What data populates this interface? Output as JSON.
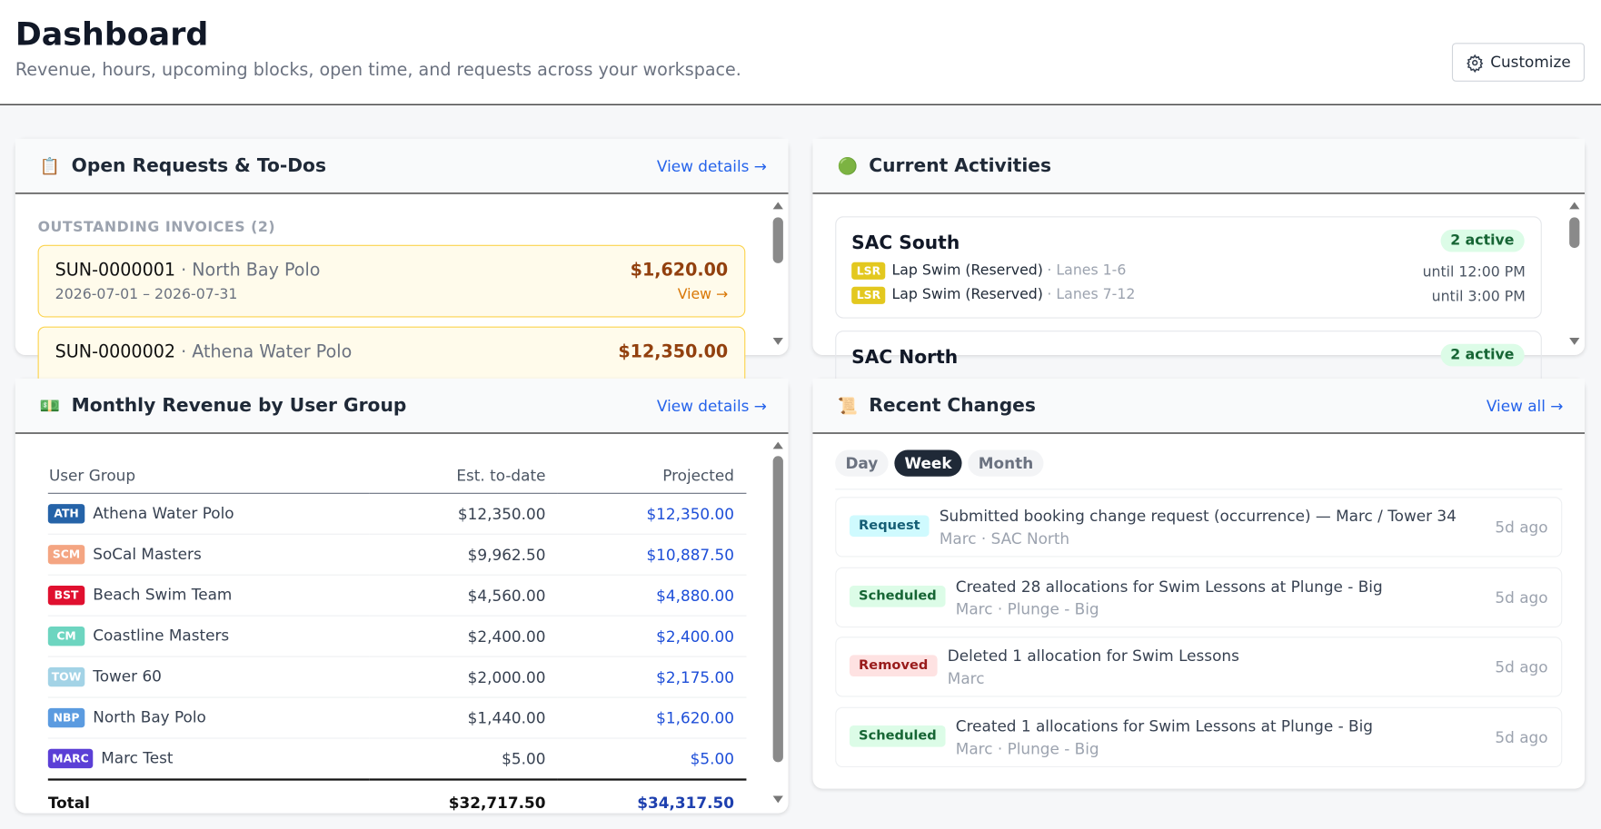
{
  "header": {
    "title": "Dashboard",
    "subtitle": "Revenue, hours, upcoming blocks, open time, and requests across your workspace.",
    "button": "Customize"
  },
  "requests": {
    "icon": "📋",
    "title": "Open Requests & To-Dos",
    "link": "View details →",
    "section": "OUTSTANDING INVOICES (2)",
    "invoices": [
      {
        "id": "SUN-0000001",
        "client": "· North Bay Polo",
        "dates": "2026-07-01 – 2026-07-31",
        "amount": "$1,620.00",
        "action": "View →"
      },
      {
        "id": "SUN-0000002",
        "client": "· Athena Water Polo",
        "amount": "$12,350.00"
      }
    ]
  },
  "activities": {
    "icon": "🟢",
    "title": "Current Activities",
    "locations": [
      {
        "name": "SAC South",
        "badge": "2 active",
        "items": [
          {
            "tag": "LSR",
            "name": "Lap Swim (Reserved)",
            "lanes": "· Lanes 1-6",
            "until": "until 12:00 PM"
          },
          {
            "tag": "LSR",
            "name": "Lap Swim (Reserved)",
            "lanes": "· Lanes 7-12",
            "until": "until 3:00 PM"
          }
        ]
      },
      {
        "name": "SAC North",
        "badge": "2 active",
        "items": []
      }
    ]
  },
  "revenue": {
    "icon": "💵",
    "title": "Monthly Revenue by User Group",
    "link": "View details →",
    "columns": [
      "User Group",
      "Est. to-date",
      "Projected"
    ],
    "rows": [
      {
        "abbr": "ATH",
        "color": "#2563a8",
        "name": "Athena Water Polo",
        "est": "$12,350.00",
        "proj": "$12,350.00"
      },
      {
        "abbr": "SCM",
        "color": "#f4a582",
        "name": "SoCal Masters",
        "est": "$9,962.50",
        "proj": "$10,887.50"
      },
      {
        "abbr": "BST",
        "color": "#e0102f",
        "name": "Beach Swim Team",
        "est": "$4,560.00",
        "proj": "$4,880.00"
      },
      {
        "abbr": "CM",
        "color": "#6dd5c0",
        "name": "Coastline Masters",
        "est": "$2,400.00",
        "proj": "$2,400.00"
      },
      {
        "abbr": "TOW",
        "color": "#a3d3e6",
        "name": "Tower 60",
        "est": "$2,000.00",
        "proj": "$2,175.00"
      },
      {
        "abbr": "NBP",
        "color": "#5b9be0",
        "name": "North Bay Polo",
        "est": "$1,440.00",
        "proj": "$1,620.00"
      },
      {
        "abbr": "MARC",
        "color": "#5b3fd6",
        "name": "Marc Test",
        "est": "$5.00",
        "proj": "$5.00"
      }
    ],
    "total": {
      "label": "Total",
      "est": "$32,717.50",
      "proj": "$34,317.50"
    }
  },
  "changes": {
    "icon": "📜",
    "title": "Recent Changes",
    "link": "View all →",
    "tabs": [
      "Day",
      "Week",
      "Month"
    ],
    "active_tab": 1,
    "items": [
      {
        "badge": "Request",
        "kind": "request",
        "text": "Submitted booking change request (occurrence) — Marc / Tower 34",
        "meta": "Marc · SAC North",
        "time": "5d ago"
      },
      {
        "badge": "Scheduled",
        "kind": "scheduled",
        "text": "Created 28 allocations for Swim Lessons at Plunge - Big",
        "meta": "Marc · Plunge - Big",
        "time": "5d ago"
      },
      {
        "badge": "Removed",
        "kind": "removed",
        "text": "Deleted 1 allocation for Swim Lessons",
        "meta": "Marc",
        "time": "5d ago"
      },
      {
        "badge": "Scheduled",
        "kind": "scheduled",
        "text": "Created 1 allocations for Swim Lessons at Plunge - Big",
        "meta": "Marc · Plunge - Big",
        "time": "5d ago"
      }
    ]
  }
}
